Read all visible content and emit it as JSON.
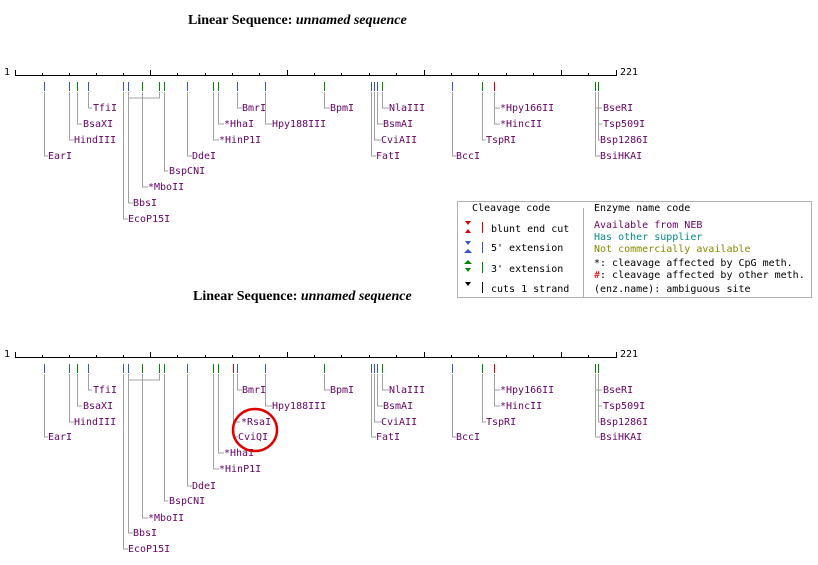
{
  "maps": [
    {
      "title_prefix": "Linear Sequence:",
      "title_name": "unnamed sequence",
      "start": "1",
      "end": "221",
      "enzymes": {
        "tfi": "TfiI",
        "bsaxi": "BsaXI",
        "hindiii": "HindIII",
        "eari": "EarI",
        "bspcni": "BspCNI",
        "mboii": "*MboII",
        "bbsi": "BbsI",
        "ecop15i": "EcoP15I",
        "ddei": "DdeI",
        "bmri": "BmrI",
        "hhai": "*HhaI",
        "hinp1i": "*HinP1I",
        "hpy188iii": "Hpy188III",
        "bpmi": "BpmI",
        "nlaiii": "NlaIII",
        "bsmai": "BsmAI",
        "cviaii": "CviAII",
        "fati": "FatI",
        "bcci": "BccI",
        "hpy166ii": "*Hpy166II",
        "hincii": "*HincII",
        "tspri": "TspRI",
        "bseri": "BseRI",
        "tsp509i": "Tsp509I",
        "bsp1286i": "Bsp1286I",
        "bsihkai": "BsiHKAI"
      }
    },
    {
      "title_prefix": "Linear Sequence:",
      "title_name": "unnamed sequence",
      "start": "1",
      "end": "221",
      "enzymes": {
        "tfi": "TfiI",
        "bsaxi": "BsaXI",
        "hindiii": "HindIII",
        "eari": "EarI",
        "bspcni": "BspCNI",
        "mboii": "*MboII",
        "bbsi": "BbsI",
        "ecop15i": "EcoP15I",
        "ddei": "DdeI",
        "bmri": "BmrI",
        "hhai": "*HhaI",
        "hinp1i": "*HinP1I",
        "rsai": "*RsaI",
        "cviqi": "CviQI",
        "hpy188iii": "Hpy188III",
        "bpmi": "BpmI",
        "nlaiii": "NlaIII",
        "bsmai": "BsmAI",
        "cviaii": "CviAII",
        "fati": "FatI",
        "bcci": "BccI",
        "hpy166ii": "*Hpy166II",
        "hincii": "*HincII",
        "tspri": "TspRI",
        "bseri": "BseRI",
        "tsp509i": "Tsp509I",
        "bsp1286i": "Bsp1286I",
        "bsihkai": "BsiHKAI"
      }
    }
  ],
  "legend": {
    "cleavage_title": "Cleavage code",
    "cleavage": [
      "blunt end cut",
      "5' extension",
      "3' extension",
      "cuts 1 strand"
    ],
    "name_title": "Enzyme name code",
    "neb": "Available from NEB",
    "other": "Has other supplier",
    "notcomm": "Not commercially available",
    "cpg": "*: cleavage affected by CpG meth.",
    "othermeth": "#: cleavage affected by other meth.",
    "ambig": "(enz.name): ambiguous site",
    "colors": {
      "blunt": "#dd0000",
      "five": "#3355cc",
      "three": "#008800",
      "one": "#000000",
      "neb": "#660066",
      "other": "#008888",
      "notcomm": "#888800"
    }
  },
  "highlight": {
    "color": "#dd0000"
  }
}
